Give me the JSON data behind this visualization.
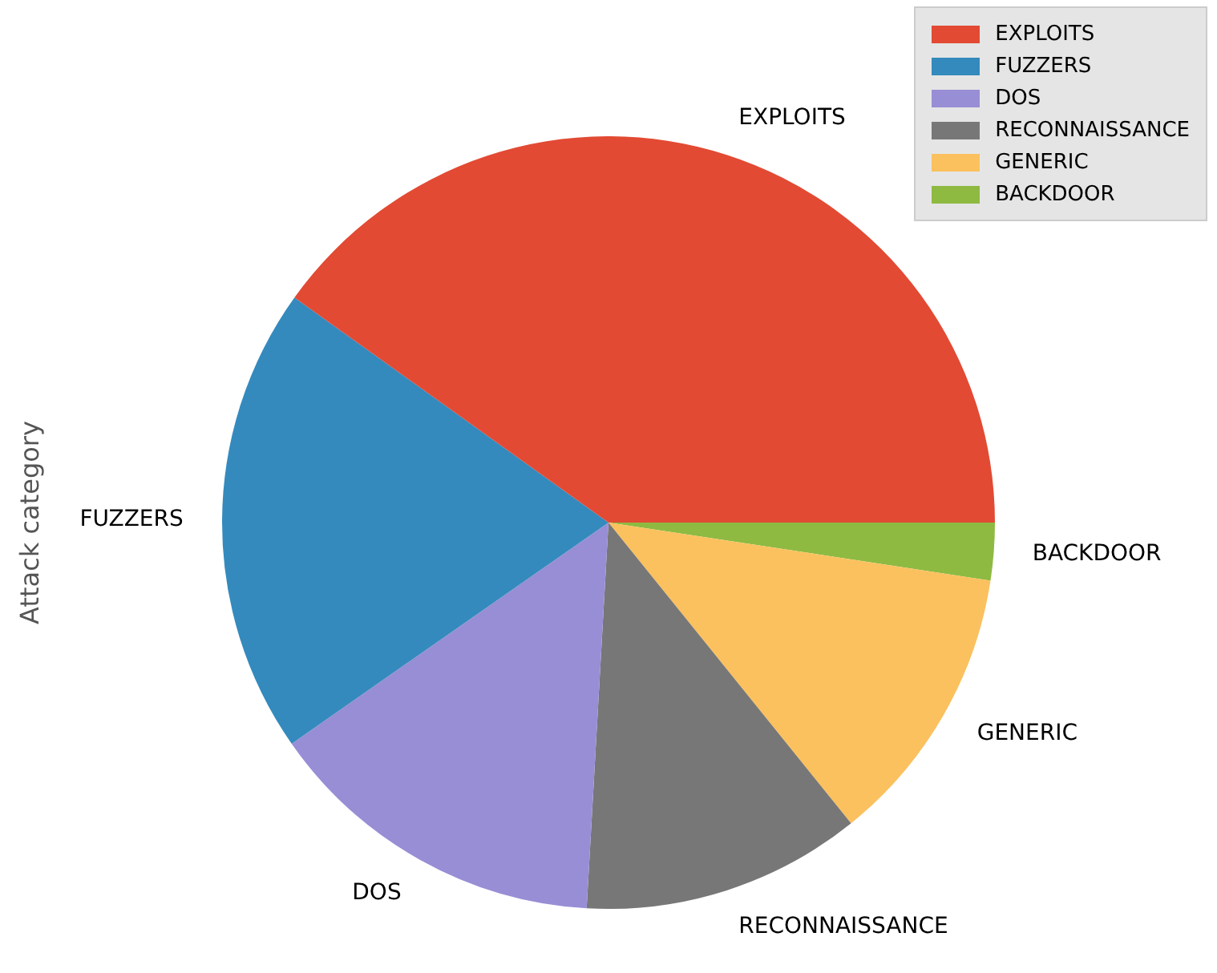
{
  "chart_data": {
    "type": "pie",
    "ylabel": "Attack category",
    "categories": [
      "EXPLOITS",
      "FUZZERS",
      "DOS",
      "RECONNAISSANCE",
      "GENERIC",
      "BACKDOOR"
    ],
    "values": [
      40.1,
      19.6,
      14.4,
      11.7,
      11.8,
      2.4
    ],
    "colors": [
      "#e24a33",
      "#348abd",
      "#988ed5",
      "#777777",
      "#fbc15e",
      "#8eba42"
    ],
    "legend": "top right"
  }
}
